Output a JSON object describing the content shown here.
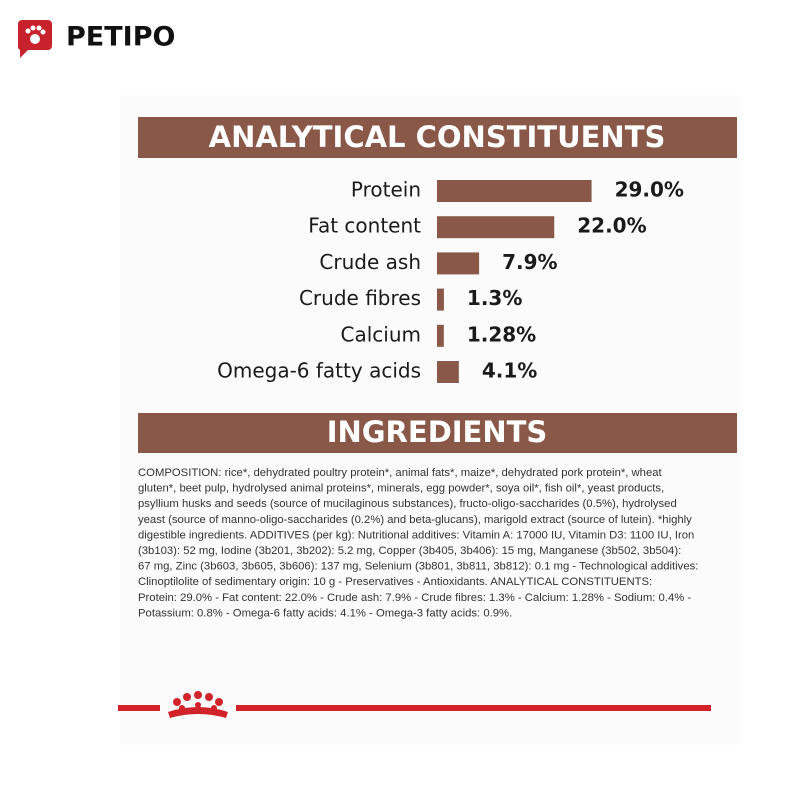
{
  "brand": {
    "name": "PETIPO"
  },
  "chart_data": {
    "type": "bar",
    "title": "ANALYTICAL CONSTITUENTS",
    "categories": [
      "Protein",
      "Fat content",
      "Crude ash",
      "Crude fibres",
      "Calcium",
      "Omega-6 fatty acids"
    ],
    "values": [
      29.0,
      22.0,
      7.9,
      1.3,
      1.28,
      4.1
    ],
    "value_labels": [
      "29.0%",
      "22.0%",
      "7.9%",
      "1.3%",
      "1.28%",
      "4.1%"
    ],
    "color": "#8a5849"
  },
  "ingredients": {
    "title": "INGREDIENTS",
    "lines": [
      "COMPOSITION: rice*, dehydrated poultry protein*, animal fats*, maize*, dehydrated pork protein*, wheat",
      "gluten*, beet pulp, hydrolysed animal proteins*, minerals, egg powder*, soya oil*, fish oil*, yeast products,",
      "psyllium husks and seeds (source of mucilaginous substances), fructo-oligo-saccharides (0.5%), hydrolysed",
      "yeast (source of manno-oligo-saccharides (0.2%) and beta-glucans), marigold extract (source of lutein). *highly",
      "digestible ingredients. ADDITIVES (per kg): Nutritional additives: Vitamin A: 17000 IU, Vitamin D3: 1100 IU, Iron",
      "(3b103): 52 mg, Iodine (3b201, 3b202): 5.2 mg, Copper (3b405, 3b406): 15 mg, Manganese (3b502, 3b504):",
      "67 mg, Zinc (3b603, 3b605, 3b606): 137 mg, Selenium (3b801, 3b811, 3b812): 0.1 mg - Technological additives:",
      "Clinoptilolite of sedimentary origin: 10 g - Preservatives - Antioxidants. ANALYTICAL CONSTITUENTS:",
      "Protein: 29.0% - Fat content: 22.0% - Crude ash: 7.9% - Crude fibres: 1.3% - Calcium: 1.28% - Sodium: 0.4% -",
      "Potassium: 0.8% - Omega-6 fatty acids: 4.1% - Omega-3 fatty acids: 0.9%."
    ]
  }
}
